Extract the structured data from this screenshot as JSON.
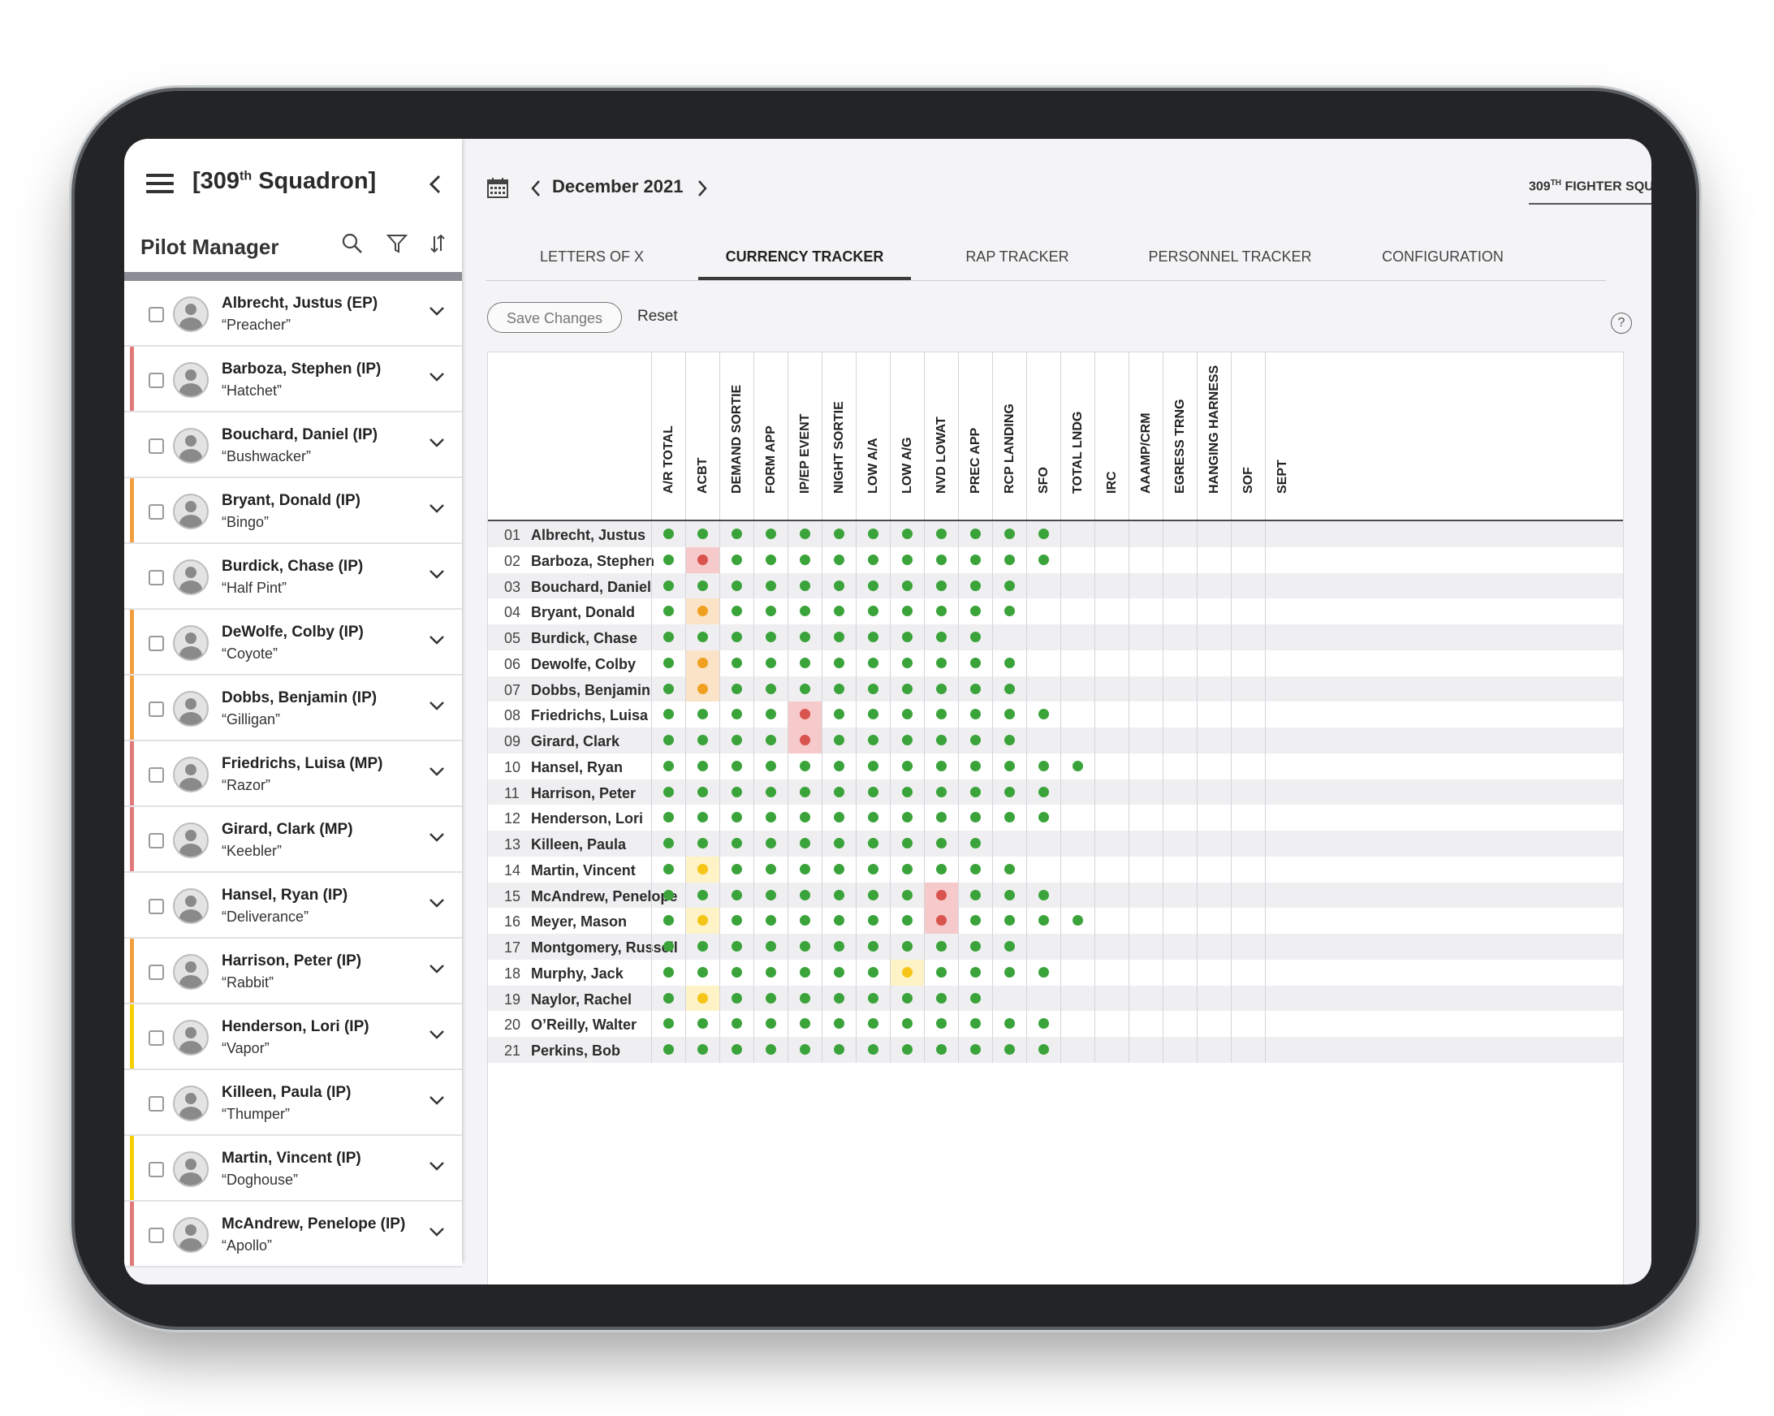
{
  "sidebar": {
    "squadron_title_main": "[309",
    "squadron_title_sup": "th",
    "squadron_title_end": " Squadron]",
    "panel_title": "Pilot Manager",
    "pilots": [
      {
        "name": "Albrecht, Justus (EP)",
        "callsign": "“Preacher”",
        "accent": ""
      },
      {
        "name": "Barboza, Stephen (IP)",
        "callsign": "“Hatchet”",
        "accent": "#e07a7a"
      },
      {
        "name": "Bouchard, Daniel (IP)",
        "callsign": "“Bushwacker”",
        "accent": ""
      },
      {
        "name": "Bryant, Donald (IP)",
        "callsign": "“Bingo”",
        "accent": "#f0a040"
      },
      {
        "name": "Burdick, Chase (IP)",
        "callsign": "“Half Pint”",
        "accent": ""
      },
      {
        "name": "DeWolfe, Colby (IP)",
        "callsign": "“Coyote”",
        "accent": "#f0a040"
      },
      {
        "name": "Dobbs, Benjamin (IP)",
        "callsign": "“Gilligan”",
        "accent": "#f0a040"
      },
      {
        "name": "Friedrichs, Luisa (MP)",
        "callsign": "“Razor”",
        "accent": "#e07a7a"
      },
      {
        "name": "Girard, Clark (MP)",
        "callsign": "“Keebler”",
        "accent": "#e07a7a"
      },
      {
        "name": "Hansel, Ryan (IP)",
        "callsign": "“Deliverance”",
        "accent": ""
      },
      {
        "name": "Harrison, Peter (IP)",
        "callsign": "“Rabbit”",
        "accent": "#f0a040"
      },
      {
        "name": "Henderson, Lori (IP)",
        "callsign": "“Vapor”",
        "accent": "#f5d000"
      },
      {
        "name": "Killeen, Paula (IP)",
        "callsign": "“Thumper”",
        "accent": ""
      },
      {
        "name": "Martin, Vincent (IP)",
        "callsign": "“Doghouse”",
        "accent": "#f5d000"
      },
      {
        "name": "McAndrew, Penelope (IP)",
        "callsign": "“Apollo”",
        "accent": "#e07a7a"
      }
    ]
  },
  "topbar": {
    "month": "December 2021",
    "squadron_select_main": "309",
    "squadron_select_sup": "TH",
    "squadron_select_end": " FIGHTER SQUADRON"
  },
  "tabs": [
    "LETTERS OF X",
    "CURRENCY TRACKER",
    "RAP TRACKER",
    "PERSONNEL TRACKER",
    "CONFIGURATION"
  ],
  "active_tab": "CURRENCY TRACKER",
  "actions": {
    "save": "Save Changes",
    "reset": "Reset",
    "help": "?"
  },
  "colors": {
    "green": "#3aa33a",
    "red": "#d9534f",
    "orange": "#f0a020",
    "yellow": "#f5c518"
  },
  "grid": {
    "columns": [
      "A/R TOTAL",
      "ACBT",
      "DEMAND SORTIE",
      "FORM APP",
      "IP/EP EVENT",
      "NIGHT SORTIE",
      "LOW A/A",
      "LOW A/G",
      "NVD LOWAT",
      "PREC APP",
      "RCP LANDING",
      "SFO",
      "TOTAL LNDG",
      "IRC",
      "AAAMP/CRM",
      "EGRESS TRNG",
      "HANGING HARNESS",
      "SOF",
      "SEPT"
    ],
    "rows": [
      {
        "num": "01",
        "name": "Albrecht, Justus",
        "cells": "GGGGGGGGGGGG"
      },
      {
        "num": "02",
        "name": "Barboza, Stephen",
        "cells": "GRGGGGGGGGGG"
      },
      {
        "num": "03",
        "name": "Bouchard, Daniel",
        "cells": "GGGGGGGGGGG"
      },
      {
        "num": "04",
        "name": "Bryant, Donald",
        "cells": "GOGGGGGGGGG"
      },
      {
        "num": "05",
        "name": "Burdick, Chase",
        "cells": "GGGGGGGGGG"
      },
      {
        "num": "06",
        "name": "Dewolfe, Colby",
        "cells": "GOGGGGGGGGG"
      },
      {
        "num": "07",
        "name": "Dobbs, Benjamin",
        "cells": "GOGGGGGGGGG"
      },
      {
        "num": "08",
        "name": "Friedrichs, Luisa",
        "cells": "GGGGRGGGGGGG"
      },
      {
        "num": "09",
        "name": "Girard, Clark",
        "cells": "GGGGRGGGGGG"
      },
      {
        "num": "10",
        "name": "Hansel, Ryan",
        "cells": "GGGGGGGGGGGGG"
      },
      {
        "num": "11",
        "name": "Harrison, Peter",
        "cells": "GGGGGGGGGGGG"
      },
      {
        "num": "12",
        "name": "Henderson, Lori",
        "cells": "GGGGGGGGGGGG"
      },
      {
        "num": "13",
        "name": "Killeen, Paula",
        "cells": "GGGGGGGGGG"
      },
      {
        "num": "14",
        "name": "Martin, Vincent",
        "cells": "GYGGGGGGGGG"
      },
      {
        "num": "15",
        "name": "McAndrew, Penelope",
        "cells": "GGGGGGGGRGGG"
      },
      {
        "num": "16",
        "name": "Meyer, Mason",
        "cells": "GYGGGGGGRGGGG"
      },
      {
        "num": "17",
        "name": "Montgomery, Russell",
        "cells": "GGGGGGGGGGG"
      },
      {
        "num": "18",
        "name": "Murphy, Jack",
        "cells": "GGGGGGGYGGGG"
      },
      {
        "num": "19",
        "name": "Naylor, Rachel",
        "cells": "GYGGGGGGGG"
      },
      {
        "num": "20",
        "name": "O’Reilly, Walter",
        "cells": "GGGGGGGGGGGG"
      },
      {
        "num": "21",
        "name": "Perkins, Bob",
        "cells": "GGGGGGGGGGGG"
      }
    ]
  }
}
